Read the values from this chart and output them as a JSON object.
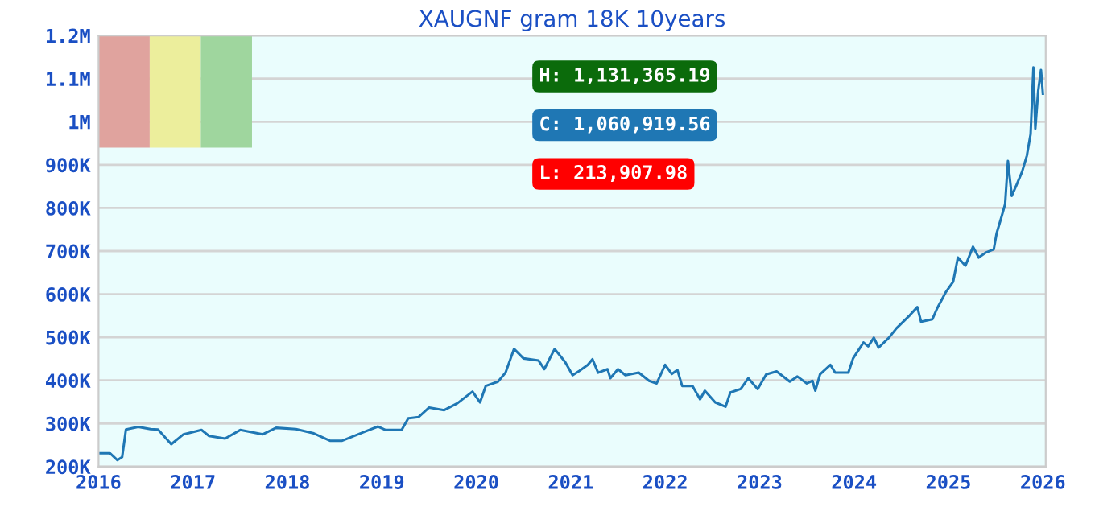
{
  "chart_data": {
    "type": "line",
    "title": "XAUGNF gram 18K 10years",
    "x": [
      2016.0,
      2016.12,
      2016.2,
      2016.25,
      2016.29,
      2016.42,
      2016.55,
      2016.63,
      2016.77,
      2016.9,
      2017.09,
      2017.17,
      2017.34,
      2017.5,
      2017.74,
      2017.88,
      2018.09,
      2018.28,
      2018.45,
      2018.58,
      2018.82,
      2018.96,
      2019.04,
      2019.21,
      2019.28,
      2019.39,
      2019.5,
      2019.66,
      2019.8,
      2019.96,
      2020.04,
      2020.1,
      2020.23,
      2020.31,
      2020.4,
      2020.5,
      2020.66,
      2020.72,
      2020.83,
      2020.94,
      2021.02,
      2021.09,
      2021.18,
      2021.23,
      2021.29,
      2021.39,
      2021.42,
      2021.5,
      2021.58,
      2021.72,
      2021.83,
      2021.91,
      2022.0,
      2022.07,
      2022.13,
      2022.18,
      2022.29,
      2022.37,
      2022.42,
      2022.53,
      2022.64,
      2022.69,
      2022.8,
      2022.88,
      2022.98,
      2023.07,
      2023.18,
      2023.32,
      2023.4,
      2023.5,
      2023.56,
      2023.59,
      2023.64,
      2023.75,
      2023.8,
      2023.94,
      2023.99,
      2024.1,
      2024.15,
      2024.21,
      2024.26,
      2024.37,
      2024.45,
      2024.59,
      2024.67,
      2024.71,
      2024.83,
      2024.88,
      2024.97,
      2025.05,
      2025.1,
      2025.18,
      2025.26,
      2025.32,
      2025.4,
      2025.48,
      2025.51,
      2025.56,
      2025.6,
      2025.63,
      2025.67,
      2025.72,
      2025.78,
      2025.83,
      2025.87,
      2025.9,
      2025.92,
      2025.95,
      2025.98,
      2026.0
    ],
    "series": [
      {
        "color": "#1f77b4",
        "values": [
          231000,
          231000,
          215000,
          222000,
          286000,
          292000,
          287000,
          286000,
          252000,
          275000,
          285000,
          271000,
          265000,
          285000,
          275000,
          290000,
          287000,
          277000,
          260000,
          260000,
          281000,
          293000,
          285000,
          285000,
          312000,
          315000,
          337000,
          331000,
          347000,
          374000,
          349000,
          387000,
          397000,
          418000,
          473000,
          451000,
          446000,
          426000,
          473000,
          443000,
          412000,
          422000,
          436000,
          449000,
          418000,
          426000,
          405000,
          426000,
          412000,
          418000,
          399000,
          393000,
          436000,
          415000,
          424000,
          387000,
          387000,
          356000,
          376000,
          349000,
          339000,
          372000,
          380000,
          405000,
          380000,
          414000,
          421000,
          397000,
          409000,
          393000,
          399000,
          376000,
          414000,
          436000,
          418000,
          418000,
          451000,
          488000,
          479000,
          499000,
          476000,
          499000,
          521000,
          551000,
          570000,
          536000,
          542000,
          567000,
          604000,
          629000,
          685000,
          666000,
          710000,
          685000,
          697000,
          704000,
          741000,
          778000,
          809000,
          909000,
          828000,
          853000,
          884000,
          921000,
          971000,
          1126000,
          984000,
          1071000,
          1120000,
          1065000
        ]
      }
    ],
    "xlim": [
      2016,
      2026.03
    ],
    "xticks": [
      2016,
      2017,
      2018,
      2019,
      2020,
      2021,
      2022,
      2023,
      2024,
      2025,
      2026
    ],
    "ylim": [
      200000,
      1200000
    ],
    "yticks": [
      {
        "value": 200000,
        "label": "200K"
      },
      {
        "value": 300000,
        "label": "300K"
      },
      {
        "value": 400000,
        "label": "400K"
      },
      {
        "value": 500000,
        "label": "500K"
      },
      {
        "value": 600000,
        "label": "600K"
      },
      {
        "value": 700000,
        "label": "700K"
      },
      {
        "value": 800000,
        "label": "800K"
      },
      {
        "value": 900000,
        "label": "900K"
      },
      {
        "value": 1000000,
        "label": "1M"
      },
      {
        "value": 1100000,
        "label": "1.1M"
      },
      {
        "value": 1200000,
        "label": "1.2M"
      }
    ],
    "annotations": [
      "H: 1,131,365.19",
      "C: 1,060,919.56",
      "L: 213,907.98"
    ],
    "grid": "y"
  }
}
